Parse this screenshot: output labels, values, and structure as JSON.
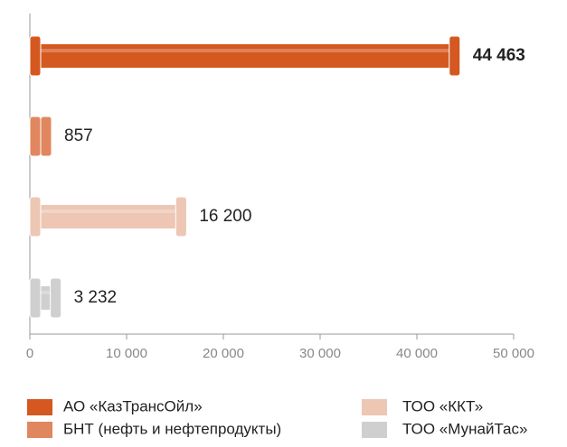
{
  "chart_data": {
    "type": "bar",
    "orientation": "horizontal",
    "categories": [
      "АО «КазТрансОйл»",
      "БНТ (нефть и нефтепродукты)",
      "ТОО «ККТ»",
      "ТОО «МунайТас»"
    ],
    "values": [
      44463,
      857,
      16200,
      3232
    ],
    "value_labels": [
      "44 463",
      "857",
      "16 200",
      "3 232"
    ],
    "colors": [
      "#d4581f",
      "#e0875f",
      "#edc6b4",
      "#cfcfcf"
    ],
    "xlim": [
      0,
      50000
    ],
    "xticks": [
      0,
      {
        "value": 10000,
        "label": "10 000"
      },
      {
        "value": 20000,
        "label": "20 000"
      },
      {
        "value": 30000,
        "label": "30 000"
      },
      {
        "value": 40000,
        "label": "40 000"
      },
      {
        "value": 50000,
        "label": "50 000"
      }
    ]
  }
}
